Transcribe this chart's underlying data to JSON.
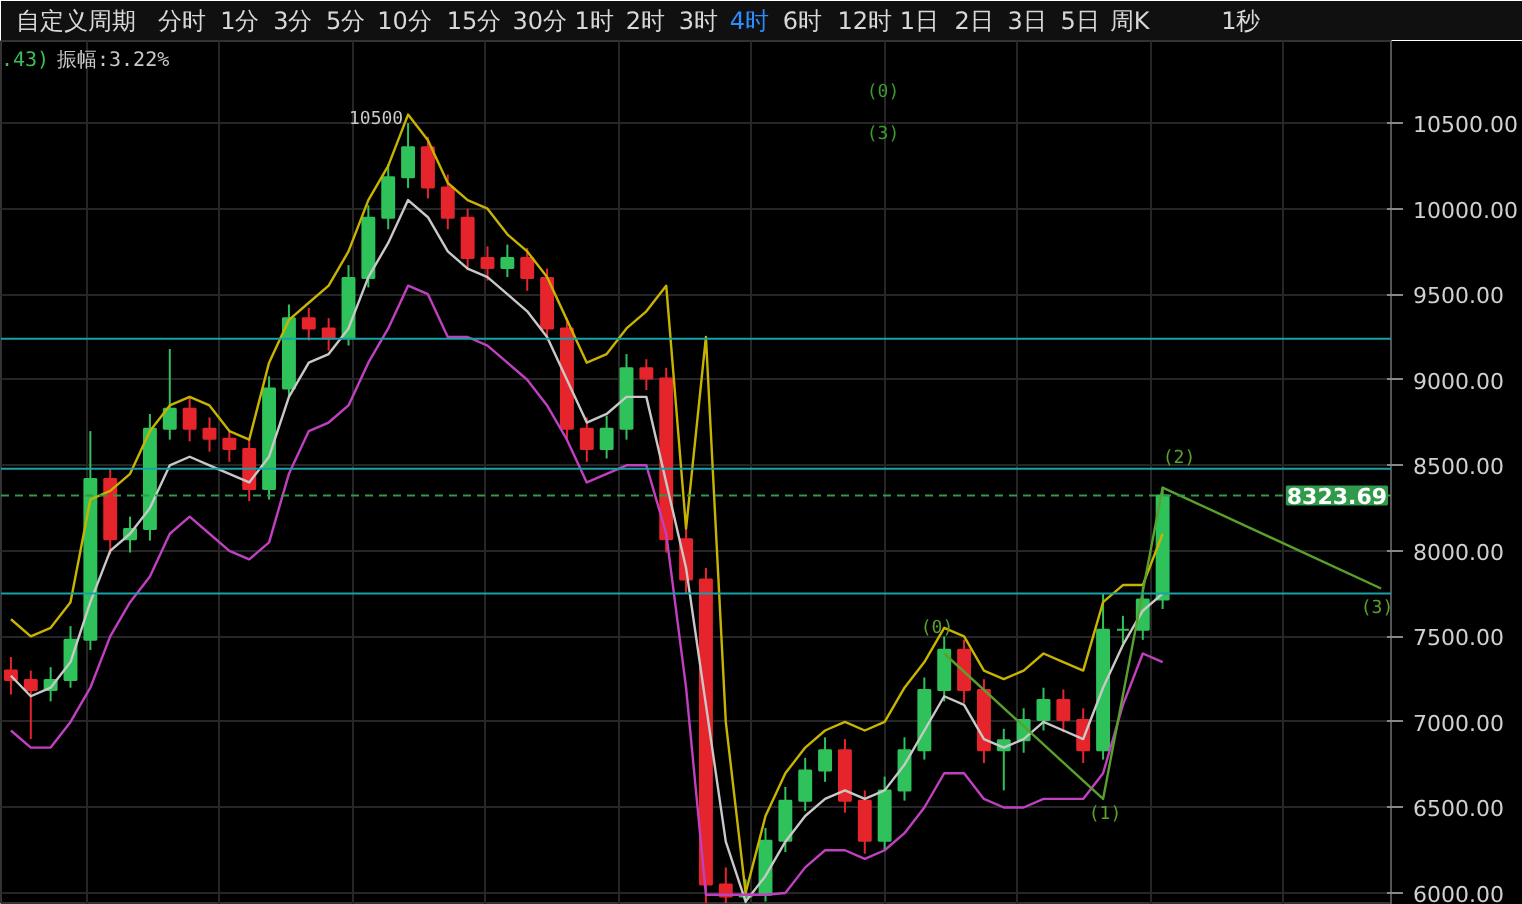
{
  "chart_data": {
    "type": "candlestick",
    "categories": [
      null,
      null,
      null,
      null,
      null,
      null,
      null,
      null,
      null,
      null,
      null,
      null,
      null,
      null,
      null,
      null,
      null,
      null,
      null,
      null,
      null,
      null,
      null,
      null,
      null,
      null,
      null,
      null,
      null,
      null,
      null,
      null,
      null,
      null,
      null,
      null,
      null,
      null,
      null,
      null,
      null,
      null,
      null,
      null,
      null,
      null,
      null,
      null,
      null,
      null,
      null,
      null,
      null,
      null,
      null,
      null,
      null,
      null,
      null,
      null,
      null,
      null,
      null,
      null,
      null,
      null,
      null,
      null,
      null,
      null
    ],
    "ohlc": [
      [
        7300,
        7380,
        7160,
        7245
      ],
      [
        7245,
        7300,
        6900,
        7187
      ],
      [
        7187,
        7320,
        7120,
        7245
      ],
      [
        7245,
        7560,
        7200,
        7480
      ],
      [
        7480,
        8700,
        7420,
        8420
      ],
      [
        8420,
        8480,
        7980,
        8068
      ],
      [
        8068,
        8200,
        7990,
        8127
      ],
      [
        8127,
        8800,
        8060,
        8714
      ],
      [
        8714,
        9180,
        8650,
        8831
      ],
      [
        8831,
        8900,
        8640,
        8714
      ],
      [
        8714,
        8780,
        8580,
        8655
      ],
      [
        8655,
        8700,
        8520,
        8596
      ],
      [
        8596,
        8650,
        8290,
        8361
      ],
      [
        8361,
        9020,
        8300,
        8949
      ],
      [
        8949,
        9440,
        8900,
        9360
      ],
      [
        9360,
        9420,
        9230,
        9300
      ],
      [
        9300,
        9360,
        9170,
        9243
      ],
      [
        9243,
        9670,
        9200,
        9595
      ],
      [
        9595,
        10020,
        9540,
        9947
      ],
      [
        9947,
        10260,
        9880,
        10183
      ],
      [
        10183,
        10500,
        10120,
        10359
      ],
      [
        10359,
        10420,
        10060,
        10124
      ],
      [
        10124,
        10200,
        9880,
        9947
      ],
      [
        9947,
        10000,
        9640,
        9712
      ],
      [
        9712,
        9780,
        9580,
        9653
      ],
      [
        9653,
        9790,
        9600,
        9712
      ],
      [
        9712,
        9770,
        9520,
        9595
      ],
      [
        9595,
        9650,
        9230,
        9300
      ],
      [
        9300,
        9360,
        8640,
        8714
      ],
      [
        8714,
        8780,
        8520,
        8596
      ],
      [
        8596,
        8790,
        8540,
        8714
      ],
      [
        8714,
        9150,
        8650,
        9067
      ],
      [
        9067,
        9120,
        8940,
        9008
      ],
      [
        9008,
        9070,
        7990,
        8068
      ],
      [
        8068,
        8130,
        7750,
        7832
      ],
      [
        7832,
        7900,
        5940,
        6050
      ],
      [
        6050,
        6150,
        5940,
        5980
      ],
      [
        5980,
        6080,
        5940,
        5990
      ],
      [
        5990,
        6380,
        5950,
        6305
      ],
      [
        6305,
        6620,
        6240,
        6540
      ],
      [
        6540,
        6790,
        6480,
        6716
      ],
      [
        6716,
        6910,
        6650,
        6834
      ],
      [
        6834,
        6900,
        6470,
        6540
      ],
      [
        6540,
        6600,
        6230,
        6305
      ],
      [
        6305,
        6680,
        6250,
        6599
      ],
      [
        6599,
        6910,
        6540,
        6834
      ],
      [
        6834,
        7260,
        6780,
        7187
      ],
      [
        7187,
        7500,
        7120,
        7422
      ],
      [
        7422,
        7480,
        7110,
        7187
      ],
      [
        7187,
        7250,
        6760,
        6834
      ],
      [
        6834,
        6960,
        6600,
        6893
      ],
      [
        6893,
        7080,
        6820,
        7011
      ],
      [
        7011,
        7200,
        6950,
        7128
      ],
      [
        7128,
        7190,
        6940,
        7011
      ],
      [
        7011,
        7080,
        6760,
        6834
      ],
      [
        6834,
        7750,
        6780,
        7539
      ],
      [
        7539,
        7620,
        7460,
        7539
      ],
      [
        7539,
        7790,
        7480,
        7715
      ],
      [
        7715,
        8370,
        7660,
        8323.69
      ],
      null,
      null,
      null,
      null,
      null,
      null,
      null,
      null,
      null,
      null,
      null
    ],
    "colors": [
      "#e5252b",
      "#e5252b",
      "#2fc25b",
      "#2fc25b",
      "#2fc25b",
      "#e5252b",
      "#2fc25b",
      "#2fc25b",
      "#2fc25b",
      "#e5252b",
      "#e5252b",
      "#e5252b",
      "#e5252b",
      "#2fc25b",
      "#2fc25b",
      "#e5252b",
      "#e5252b",
      "#2fc25b",
      "#2fc25b",
      "#2fc25b",
      "#2fc25b",
      "#e5252b",
      "#e5252b",
      "#e5252b",
      "#e5252b",
      "#2fc25b",
      "#e5252b",
      "#e5252b",
      "#e5252b",
      "#e5252b",
      "#2fc25b",
      "#2fc25b",
      "#e5252b",
      "#e5252b",
      "#e5252b",
      "#e5252b",
      "#e5252b",
      "#2fc25b",
      "#2fc25b",
      "#2fc25b",
      "#2fc25b",
      "#2fc25b",
      "#e5252b",
      "#e5252b",
      "#2fc25b",
      "#2fc25b",
      "#2fc25b",
      "#2fc25b",
      "#e5252b",
      "#e5252b",
      "#2fc25b",
      "#2fc25b",
      "#2fc25b",
      "#e5252b",
      "#e5252b",
      "#2fc25b",
      "#2fc25b",
      "#2fc25b",
      "#2fc25b",
      null,
      null,
      null,
      null,
      null,
      null,
      null,
      null,
      null,
      null,
      null
    ],
    "series": [
      {
        "type": "line",
        "color": "#c8b400",
        "values": [
          7600,
          7500,
          7550,
          7700,
          8300,
          8350,
          8450,
          8700,
          8850,
          8900,
          8850,
          8700,
          8650,
          9100,
          9350,
          9450,
          9550,
          9750,
          10050,
          10250,
          10550,
          10400,
          10150,
          10050,
          10000,
          9850,
          9750,
          9600,
          9350,
          9100,
          9150,
          9300,
          9400,
          9550,
          8130,
          9250,
          7000,
          6000,
          6450,
          6700,
          6850,
          6950,
          7000,
          6950,
          7000,
          7200,
          7350,
          7550,
          7500,
          7300,
          7250,
          7300,
          7400,
          7350,
          7300,
          7700,
          7800,
          7800,
          8100,
          null,
          null,
          null,
          null,
          null,
          null,
          null,
          null,
          null,
          null,
          null
        ]
      },
      {
        "type": "line",
        "color": "#c8c8c8",
        "values": [
          7270,
          7150,
          7200,
          7350,
          7700,
          8000,
          8100,
          8250,
          8500,
          8550,
          8500,
          8450,
          8400,
          8550,
          8900,
          9100,
          9150,
          9300,
          9600,
          9800,
          10050,
          9950,
          9750,
          9650,
          9600,
          9500,
          9400,
          9250,
          9000,
          8750,
          8800,
          8900,
          8900,
          8400,
          7900,
          7100,
          6300,
          5950,
          6100,
          6300,
          6450,
          6550,
          6600,
          6550,
          6600,
          6750,
          6950,
          7150,
          7100,
          6900,
          6850,
          6900,
          7000,
          6950,
          6900,
          7200,
          7450,
          7650,
          7750,
          null,
          null,
          null,
          null,
          null,
          null,
          null,
          null,
          null,
          null,
          null
        ]
      },
      {
        "type": "line",
        "color": "#c040c0",
        "values": [
          6950,
          6850,
          6850,
          7000,
          7200,
          7500,
          7700,
          7850,
          8100,
          8200,
          8100,
          8000,
          7950,
          8050,
          8450,
          8700,
          8750,
          8850,
          9100,
          9300,
          9550,
          9500,
          9250,
          9250,
          9200,
          9100,
          9000,
          8850,
          8650,
          8400,
          8450,
          8500,
          8500,
          8100,
          7200,
          5990,
          5990,
          5990,
          5990,
          6000,
          6150,
          6250,
          6250,
          6200,
          6250,
          6350,
          6500,
          6700,
          6700,
          6550,
          6500,
          6500,
          6550,
          6550,
          6550,
          6700,
          7100,
          7400,
          7350,
          null,
          null,
          null,
          null,
          null,
          null,
          null,
          null,
          null,
          null,
          null
        ]
      },
      {
        "type": "line",
        "color": "#5aa02c",
        "values": [
          null,
          null,
          null,
          null,
          null,
          null,
          null,
          null,
          null,
          null,
          null,
          null,
          null,
          null,
          null,
          null,
          null,
          null,
          null,
          null,
          null,
          null,
          null,
          null,
          null,
          null,
          null,
          null,
          null,
          null,
          null,
          null,
          null,
          null,
          null,
          null,
          null,
          null,
          null,
          null,
          null,
          null,
          null,
          null,
          null,
          null,
          null,
          7400,
          null,
          null,
          null,
          null,
          null,
          null,
          null,
          6550,
          null,
          null,
          8370,
          null,
          null,
          null,
          null,
          null,
          null,
          null,
          null,
          null,
          null,
          7780
        ]
      }
    ],
    "ylim": [
      5930,
      10980
    ],
    "yticks": [
      {
        "value": 6000,
        "label": "6000.00"
      },
      {
        "value": 6500,
        "label": "6500.00"
      },
      {
        "value": 7000,
        "label": "7000.00"
      },
      {
        "value": 7500,
        "label": "7500.00"
      },
      {
        "value": 8000,
        "label": "8000.00"
      },
      {
        "value": 8500,
        "label": "8500.00"
      },
      {
        "value": 9000,
        "label": "9000.00"
      },
      {
        "value": 9500,
        "label": "9500.00"
      },
      {
        "value": 10000,
        "label": "10000.00"
      },
      {
        "value": 10500,
        "label": "10500.00"
      }
    ],
    "tick_labels": "y",
    "grid": true,
    "ref_lines": [
      {
        "axis": "y",
        "value": 9240,
        "color": "#17a2a8"
      },
      {
        "axis": "y",
        "value": 8480,
        "color": "#17a2a8"
      },
      {
        "axis": "y",
        "value": 7750,
        "color": "#17a2a8"
      },
      {
        "axis": "y",
        "value": 8323.69,
        "label": "8323.69",
        "color": "#2e9a4a",
        "line_style": "dashed"
      }
    ],
    "annotations": [
      "自定义周期",
      "分时",
      "1分",
      "3分",
      "5分",
      "10分",
      "15分",
      "30分",
      "1时",
      "2时",
      "3时",
      "4时",
      "6时",
      "12时",
      "1日",
      "2日",
      "3日",
      "5日",
      "周K",
      "1秒",
      ".43)",
      "振幅:3.22%",
      "10500",
      "(0)",
      "(3)",
      "(0)",
      "(1)",
      "(2)",
      "(3)"
    ]
  }
}
